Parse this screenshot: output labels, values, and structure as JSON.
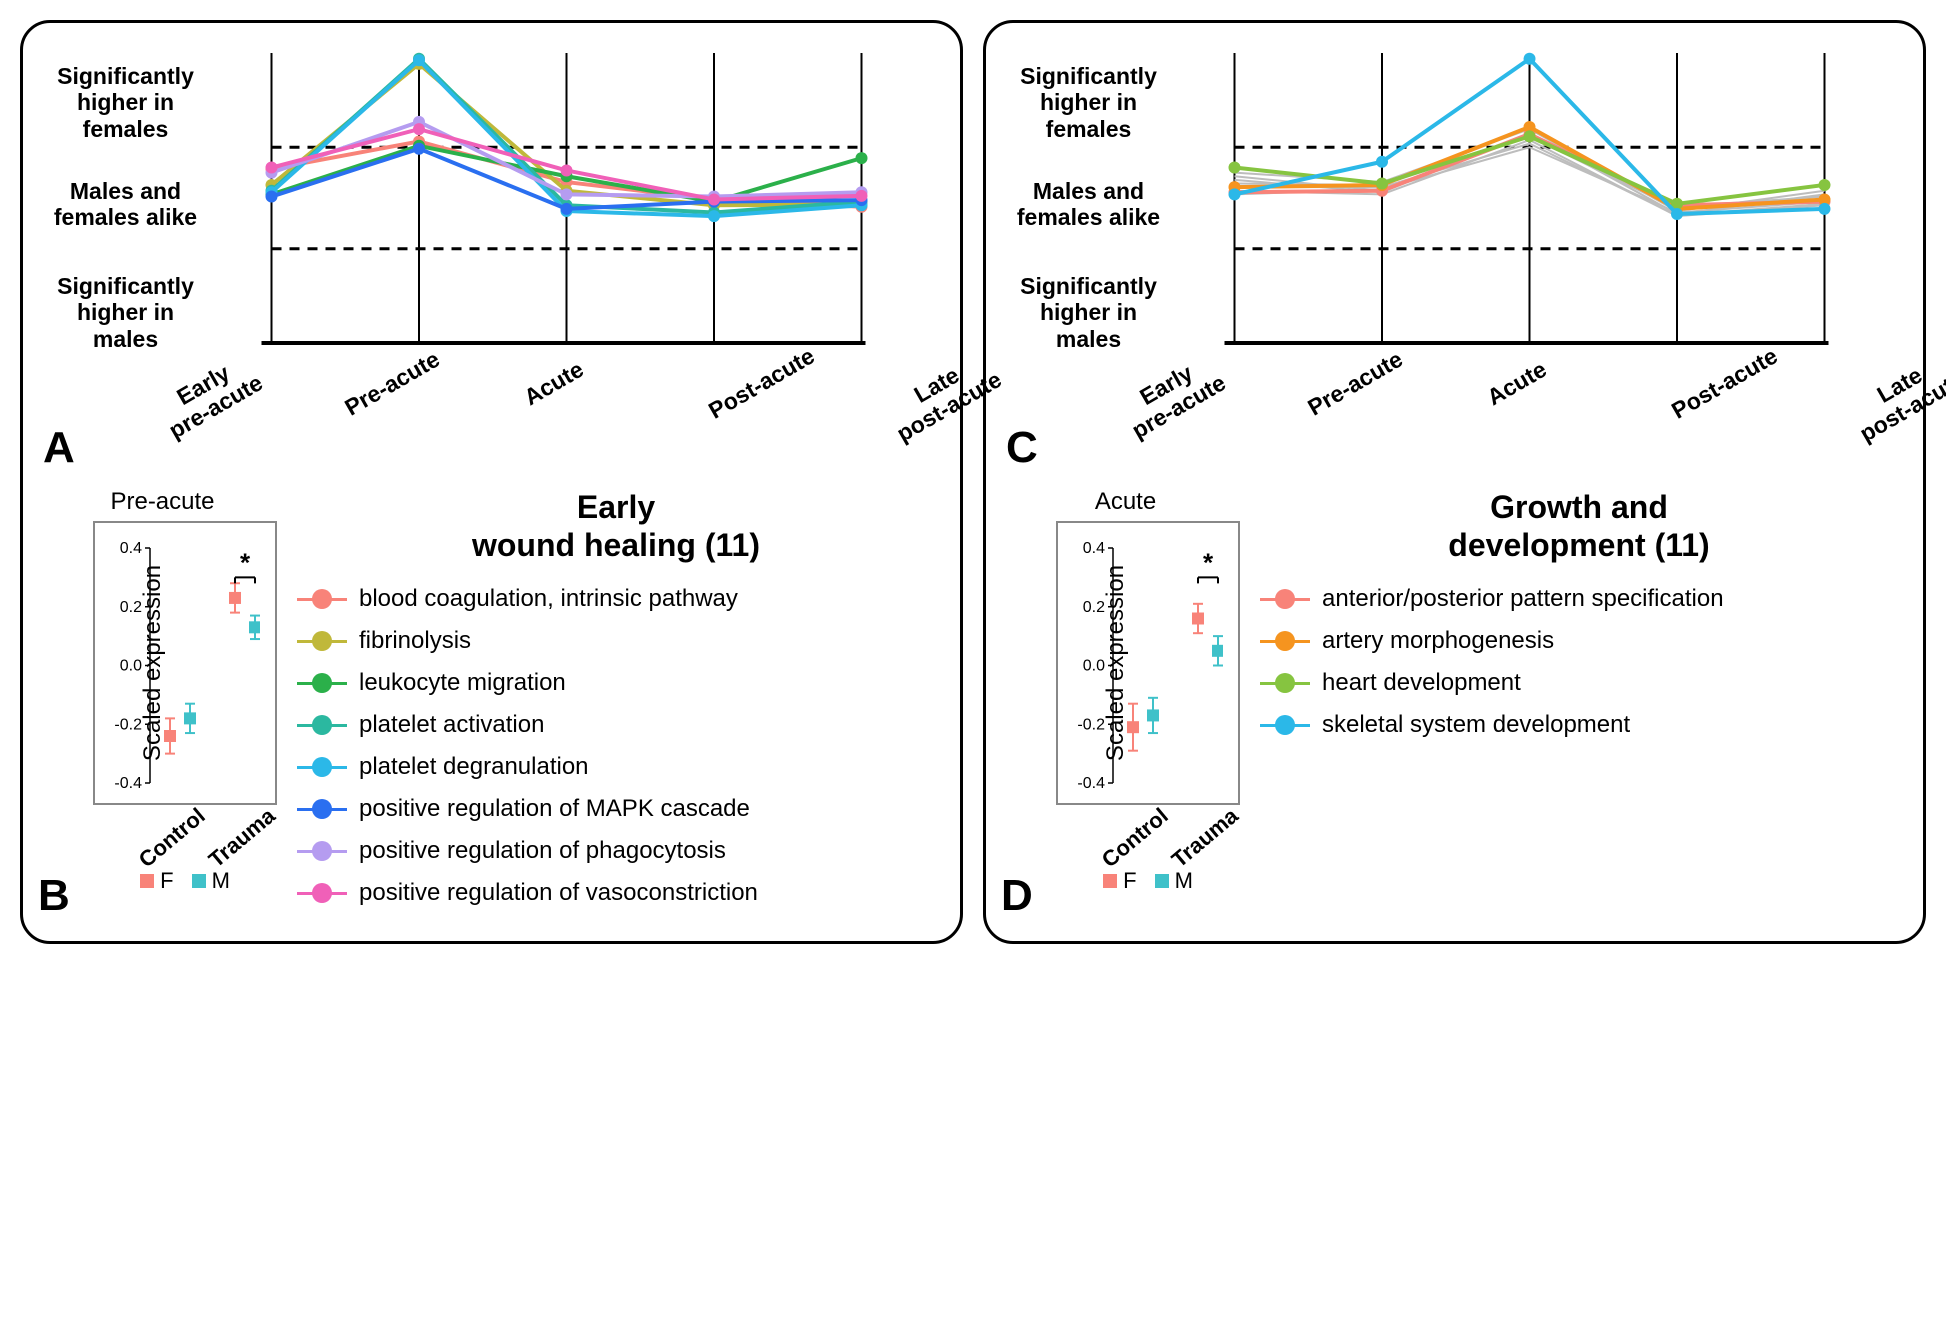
{
  "colors": {
    "f": "#f88379",
    "m": "#3fc1c9",
    "grey": "#bdbdbd"
  },
  "shared": {
    "x_categories": [
      "Early\npre-acute",
      "Pre-acute",
      "Acute",
      "Post-acute",
      "Late\npost-acute"
    ],
    "y_labels": [
      "Significantly higher in females",
      "Males and females alike",
      "Significantly higher in males"
    ],
    "y_range": [
      -2,
      2
    ],
    "dashed_y": [
      -0.7,
      0.7
    ],
    "axis_color": "#000000",
    "dash_pattern": "10,8",
    "fm_legend": {
      "f": "F",
      "m": "M"
    }
  },
  "panelA": {
    "letter": "A",
    "series": [
      {
        "name": "blood coagulation, intrinsic pathway",
        "color": "#f88379",
        "y": [
          0.4,
          0.78,
          0.22,
          -0.02,
          -0.12
        ]
      },
      {
        "name": "fibrinolysis",
        "color": "#c0b83a",
        "y": [
          0.18,
          1.85,
          0.1,
          -0.1,
          -0.09
        ]
      },
      {
        "name": "leukocyte migration",
        "color": "#2bb04a",
        "y": [
          0.05,
          0.72,
          0.3,
          -0.05,
          0.55
        ]
      },
      {
        "name": "platelet activation",
        "color": "#2bb8a0",
        "y": [
          0.1,
          1.92,
          -0.1,
          -0.2,
          -0.05
        ]
      },
      {
        "name": "platelet degranulation",
        "color": "#2bb8e8",
        "y": [
          0.08,
          1.9,
          -0.18,
          -0.25,
          -0.1
        ]
      },
      {
        "name": "positive regulation of MAPK cascade",
        "color": "#2a6ff0",
        "y": [
          0.02,
          0.68,
          -0.15,
          -0.05,
          -0.03
        ]
      },
      {
        "name": "positive regulation of phagocytosis",
        "color": "#b59cf0",
        "y": [
          0.35,
          1.05,
          0.05,
          0.02,
          0.08
        ]
      },
      {
        "name": "positive regulation of vasoconstriction",
        "color": "#f060b8",
        "y": [
          0.42,
          0.95,
          0.38,
          -0.02,
          0.03
        ]
      }
    ]
  },
  "panelC": {
    "letter": "C",
    "grey_series": [
      [
        0.3,
        0.1,
        0.9,
        -0.22,
        0.05
      ],
      [
        0.2,
        0.18,
        0.85,
        -0.15,
        -0.02
      ],
      [
        0.1,
        0.05,
        0.8,
        -0.25,
        -0.1
      ],
      [
        0.35,
        0.22,
        0.95,
        -0.18,
        0.1
      ],
      [
        0.05,
        0.12,
        0.7,
        -0.2,
        -0.05
      ],
      [
        0.25,
        0.08,
        0.88,
        -0.12,
        0.02
      ],
      [
        0.15,
        0.15,
        0.75,
        -0.24,
        -0.08
      ]
    ],
    "series": [
      {
        "name": "anterior/posterior pattern specification",
        "color": "#f88379",
        "y": [
          0.08,
          0.1,
          0.88,
          -0.1,
          -0.05
        ]
      },
      {
        "name": "artery morphogenesis",
        "color": "#f5941f",
        "y": [
          0.15,
          0.18,
          0.98,
          -0.15,
          -0.02
        ]
      },
      {
        "name": "heart development",
        "color": "#86c440",
        "y": [
          0.42,
          0.2,
          0.85,
          -0.08,
          0.18
        ]
      },
      {
        "name": "skeletal system development",
        "color": "#2bb8e8",
        "y": [
          0.05,
          0.5,
          1.92,
          -0.22,
          -0.15
        ]
      }
    ]
  },
  "panelB": {
    "letter": "B",
    "small_title": "Pre-acute",
    "y_label": "Scaled expression",
    "y_ticks": [
      -0.4,
      -0.2,
      0.0,
      0.2,
      0.4
    ],
    "x_cats": [
      "Control",
      "Trauma"
    ],
    "sig_marker": "*",
    "points": {
      "f": [
        {
          "x": 0,
          "y": -0.24,
          "err": 0.06
        },
        {
          "x": 1,
          "y": 0.23,
          "err": 0.05
        }
      ],
      "m": [
        {
          "x": 0,
          "y": -0.18,
          "err": 0.05
        },
        {
          "x": 1,
          "y": 0.13,
          "err": 0.04
        }
      ]
    },
    "legend_title": "Early\nwound healing (11)"
  },
  "panelD": {
    "letter": "D",
    "small_title": "Acute",
    "y_label": "Scaled expression",
    "y_ticks": [
      -0.4,
      -0.2,
      0.0,
      0.2,
      0.4
    ],
    "x_cats": [
      "Control",
      "Trauma"
    ],
    "sig_marker": "*",
    "points": {
      "f": [
        {
          "x": 0,
          "y": -0.21,
          "err": 0.08
        },
        {
          "x": 1,
          "y": 0.16,
          "err": 0.05
        }
      ],
      "m": [
        {
          "x": 0,
          "y": -0.17,
          "err": 0.06
        },
        {
          "x": 1,
          "y": 0.05,
          "err": 0.05
        }
      ]
    },
    "legend_title": "Growth and\ndevelopment (11)"
  }
}
